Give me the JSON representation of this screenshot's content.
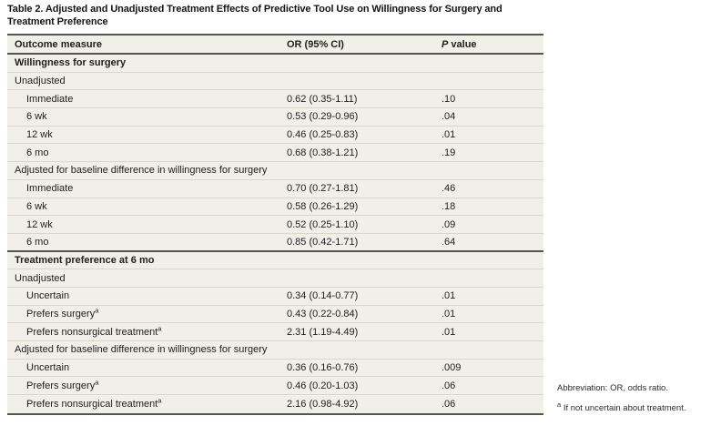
{
  "title": {
    "text": "Table 2. Adjusted and Unadjusted Treatment Effects of Predictive Tool Use on Willingness for Surgery and Treatment Preference"
  },
  "table": {
    "columns": {
      "outcome": "Outcome measure",
      "or": "OR (95% CI)",
      "p_italic": "P",
      "p_rest": " value"
    },
    "rows": [
      {
        "label": "Willingness for surgery"
      },
      {
        "label": "Unadjusted"
      },
      {
        "label": "Immediate",
        "or": "0.62 (0.35-1.11)",
        "p": ".10"
      },
      {
        "label": "6 wk",
        "or": "0.53 (0.29-0.96)",
        "p": ".04"
      },
      {
        "label": "12 wk",
        "or": "0.46 (0.25-0.83)",
        "p": ".01"
      },
      {
        "label": "6 mo",
        "or": "0.68 (0.38-1.21)",
        "p": ".19"
      },
      {
        "label": "Adjusted for baseline difference in willingness for surgery"
      },
      {
        "label": "Immediate",
        "or": "0.70 (0.27-1.81)",
        "p": ".46"
      },
      {
        "label": "6 wk",
        "or": "0.58 (0.26-1.29)",
        "p": ".18"
      },
      {
        "label": "12 wk",
        "or": "0.52 (0.25-1.10)",
        "p": ".09"
      },
      {
        "label": "6 mo",
        "or": "0.85 (0.42-1.71)",
        "p": ".64"
      },
      {
        "label": "Treatment preference at 6 mo"
      },
      {
        "label": "Unadjusted"
      },
      {
        "label": "Uncertain",
        "or": "0.34 (0.14-0.77)",
        "p": ".01"
      },
      {
        "label": "Prefers surgery",
        "sup": "a",
        "or": "0.43 (0.22-0.84)",
        "p": ".01"
      },
      {
        "label": "Prefers nonsurgical treatment",
        "sup": "a",
        "or": "2.31 (1.19-4.49)",
        "p": ".01"
      },
      {
        "label": "Adjusted for baseline difference in willingness for surgery"
      },
      {
        "label": "Uncertain",
        "or": "0.36 (0.16-0.76)",
        "p": ".009"
      },
      {
        "label": "Prefers surgery",
        "sup": "a",
        "or": "0.46 (0.20-1.03)",
        "p": ".06"
      },
      {
        "label": "Prefers nonsurgical treatment",
        "sup": "a",
        "or": "2.16 (0.98-4.92)",
        "p": ".06"
      }
    ]
  },
  "footnotes": {
    "abbreviation": "Abbreviation: OR, odds ratio.",
    "a_sup": "a",
    "a_text": "If not uncertain about treatment."
  }
}
